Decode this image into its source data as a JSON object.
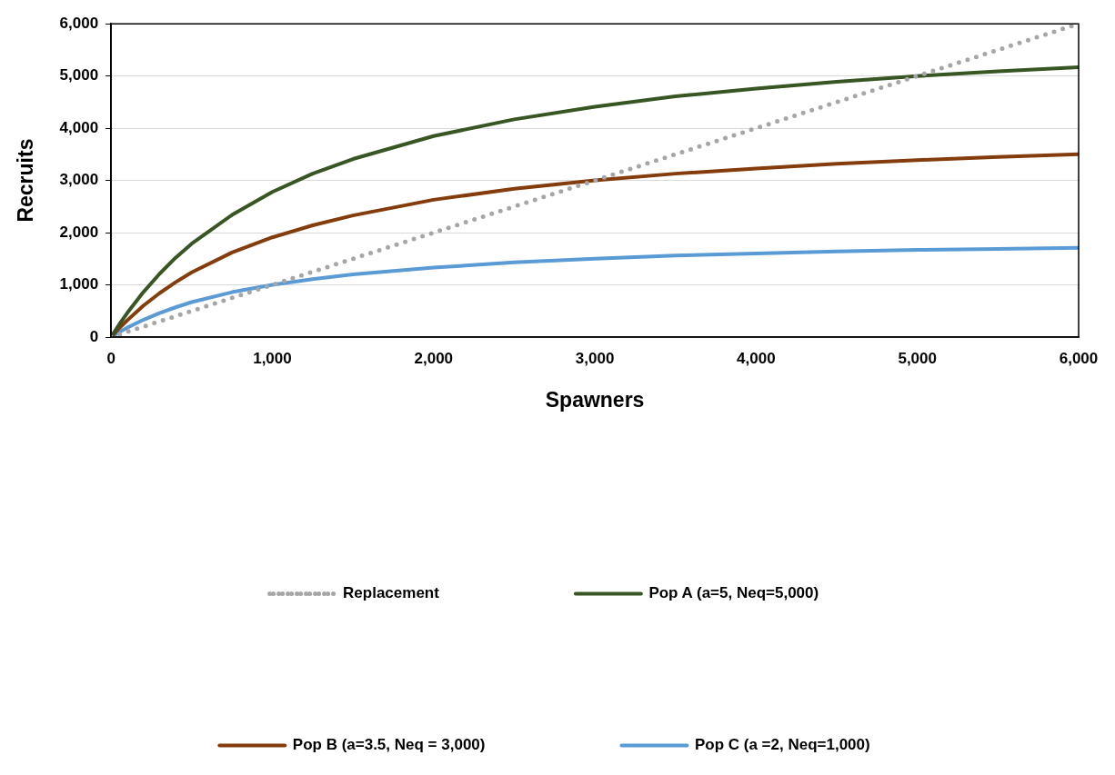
{
  "chart_data": {
    "type": "line",
    "xlabel": "Spawners",
    "ylabel": "Recruits",
    "xlim": [
      0,
      6000
    ],
    "ylim": [
      0,
      6000
    ],
    "xticks": [
      {
        "value": 0,
        "label": "0"
      },
      {
        "value": 1000,
        "label": "1,000"
      },
      {
        "value": 2000,
        "label": "2,000"
      },
      {
        "value": 3000,
        "label": "3,000"
      },
      {
        "value": 4000,
        "label": "4,000"
      },
      {
        "value": 5000,
        "label": "5,000"
      },
      {
        "value": 6000,
        "label": "6,000"
      }
    ],
    "yticks": [
      {
        "value": 0,
        "label": "0"
      },
      {
        "value": 1000,
        "label": "1,000"
      },
      {
        "value": 2000,
        "label": "2,000"
      },
      {
        "value": 3000,
        "label": "3,000"
      },
      {
        "value": 4000,
        "label": "4,000"
      },
      {
        "value": 5000,
        "label": "5,000"
      },
      {
        "value": 6000,
        "label": "6,000"
      }
    ],
    "grid": "y",
    "legend": "bottom",
    "marker": "none",
    "x": [
      0,
      50,
      100,
      200,
      300,
      400,
      500,
      750,
      1000,
      1250,
      1500,
      2000,
      2500,
      3000,
      3500,
      4000,
      4500,
      5000,
      5500,
      6000
    ],
    "series": [
      {
        "name": "Replacement",
        "color": "#a6a6a6",
        "line_style": "dotted",
        "x": [
          0,
          6000
        ],
        "values": [
          0,
          6000
        ]
      },
      {
        "name": "Pop A (a=5, Neq=5,000)",
        "color": "#375623",
        "line_style": "solid",
        "values": [
          0,
          240,
          460,
          860,
          1210,
          1520,
          1790,
          2340,
          2780,
          3130,
          3410,
          3850,
          4170,
          4410,
          4610,
          4760,
          4890,
          5000,
          5090,
          5170
        ]
      },
      {
        "name": "Pop B (a=3.5, Neq = 3,000)",
        "color": "#843c0c",
        "line_style": "solid",
        "values": [
          0,
          170,
          320,
          600,
          840,
          1050,
          1240,
          1620,
          1910,
          2140,
          2330,
          2630,
          2840,
          3000,
          3130,
          3230,
          3320,
          3390,
          3450,
          3500
        ]
      },
      {
        "name": "Pop C (a =2, Neq=1,000)",
        "color": "#5b9bd5",
        "line_style": "solid",
        "values": [
          0,
          95,
          180,
          330,
          460,
          570,
          670,
          860,
          1000,
          1110,
          1200,
          1330,
          1430,
          1500,
          1560,
          1600,
          1640,
          1670,
          1690,
          1710
        ]
      }
    ]
  }
}
